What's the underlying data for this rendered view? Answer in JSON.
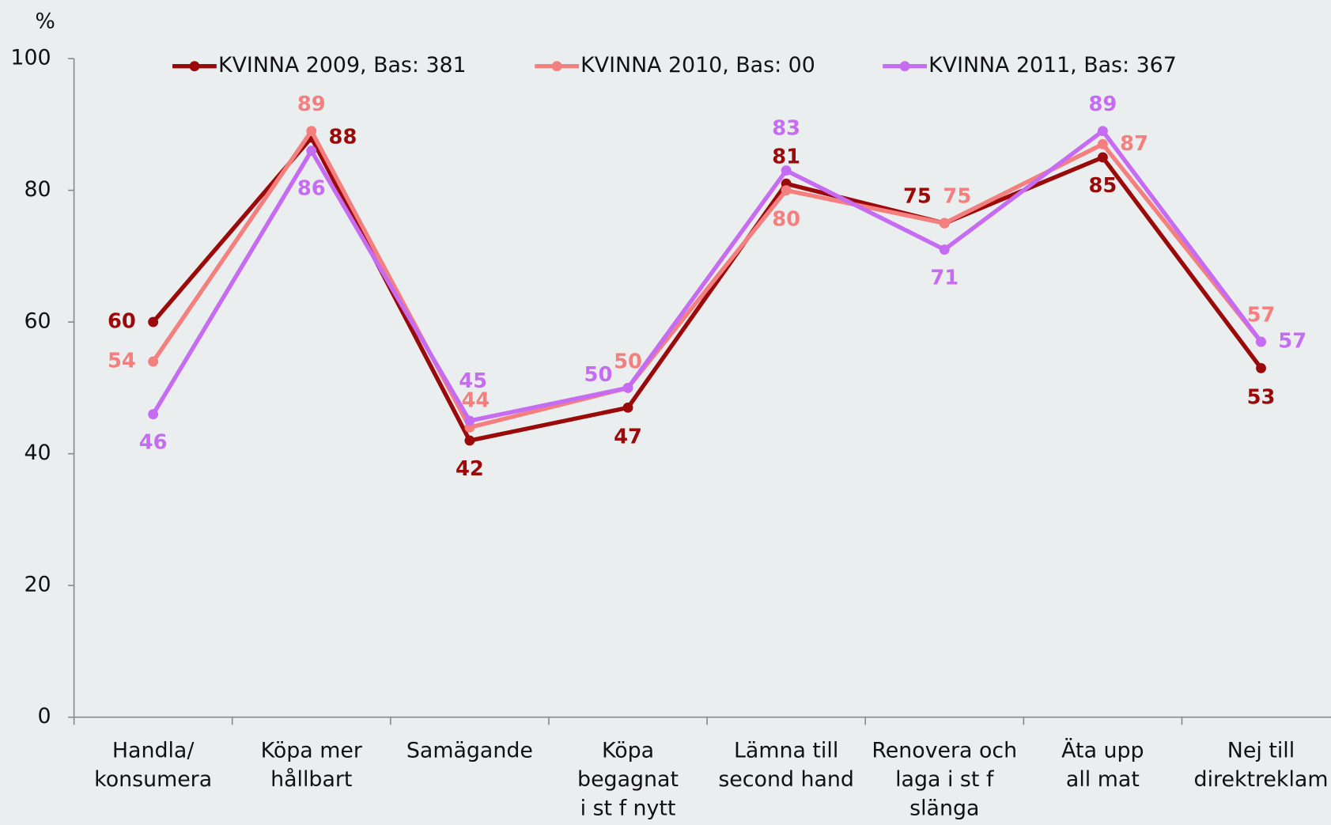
{
  "chart_data": {
    "type": "line",
    "y_label": "%",
    "categories": [
      "Handla/\nkonsumera",
      "Köpa mer\nhållbart",
      "Samägande",
      "Köpa\nbegagnat\ni st f nytt",
      "Lämna till\nsecond hand",
      "Renovera och\nlaga i st f\nslänga",
      "Äta upp\nall mat",
      "Nej till\ndirektreklam"
    ],
    "series": [
      {
        "name": "KVINNA 2009, Bas: 381",
        "color": "#9b0a0a",
        "values": [
          60,
          88,
          42,
          47,
          81,
          75,
          85,
          53
        ]
      },
      {
        "name": "KVINNA 2010, Bas: 00",
        "color": "#f47f7f",
        "values": [
          54,
          89,
          44,
          50,
          80,
          75,
          87,
          57
        ]
      },
      {
        "name": "KVINNA 2011, Bas: 367",
        "color": "#c66cf2",
        "values": [
          46,
          86,
          45,
          50,
          83,
          71,
          89,
          57
        ]
      }
    ],
    "ylim": [
      0,
      100
    ],
    "yticks": [
      0,
      20,
      40,
      60,
      80,
      100
    ],
    "grid": false,
    "legend": "top"
  }
}
